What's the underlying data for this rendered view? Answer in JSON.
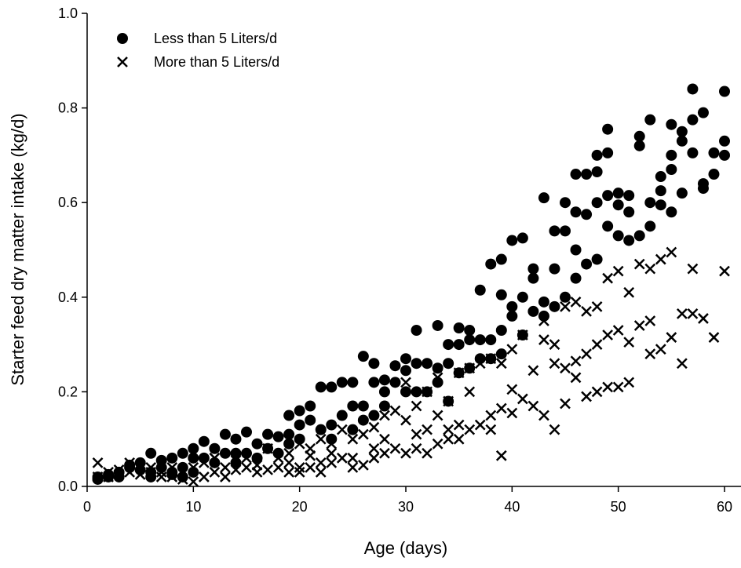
{
  "chart_data": {
    "type": "scatter",
    "x_label": "Age (days)",
    "y_label": "Starter feed dry matter intake (kg/d)",
    "xlim": [
      0,
      62
    ],
    "xticks": [
      0,
      10,
      20,
      30,
      40,
      50,
      60
    ],
    "ylim": [
      0,
      1
    ],
    "yticks": [
      {
        "value": 0,
        "label": "0.0"
      },
      0.2,
      0.4,
      0.6,
      0.8,
      {
        "value": 1,
        "label": "1.0"
      }
    ],
    "legend": "upper left",
    "series": [
      {
        "name": "Less than 5 Liters/d",
        "marker": "circle",
        "color": "#000000",
        "x": [
          1,
          1,
          2,
          2,
          3,
          3,
          4,
          4,
          5,
          5,
          6,
          6,
          6,
          7,
          7,
          8,
          8,
          8,
          9,
          9,
          9,
          10,
          10,
          10,
          11,
          11,
          12,
          12,
          13,
          13,
          14,
          14,
          14,
          15,
          15,
          16,
          16,
          17,
          17,
          18,
          18,
          19,
          19,
          19,
          20,
          20,
          20,
          21,
          21,
          22,
          22,
          23,
          23,
          23,
          24,
          24,
          25,
          25,
          25,
          26,
          26,
          26,
          27,
          27,
          27,
          28,
          28,
          28,
          29,
          29,
          30,
          30,
          30,
          31,
          31,
          31,
          32,
          32,
          33,
          33,
          33,
          34,
          34,
          34,
          35,
          35,
          35,
          36,
          36,
          36,
          37,
          37,
          37,
          38,
          38,
          38,
          39,
          39,
          39,
          39,
          40,
          40,
          40,
          41,
          41,
          41,
          42,
          42,
          42,
          43,
          43,
          43,
          44,
          44,
          44,
          45,
          45,
          45,
          46,
          46,
          46,
          46,
          47,
          47,
          47,
          48,
          48,
          48,
          48,
          49,
          49,
          49,
          49,
          50,
          50,
          50,
          51,
          51,
          51,
          52,
          52,
          52,
          53,
          53,
          53,
          54,
          54,
          54,
          55,
          55,
          55,
          55,
          56,
          56,
          56,
          57,
          57,
          57,
          58,
          58,
          58,
          59,
          59,
          60,
          60,
          60
        ],
        "values": [
          0.015,
          0.02,
          0.02,
          0.025,
          0.02,
          0.03,
          0.04,
          0.045,
          0.035,
          0.05,
          0.03,
          0.07,
          0.02,
          0.04,
          0.055,
          0.06,
          0.03,
          0.025,
          0.07,
          0.02,
          0.04,
          0.08,
          0.03,
          0.06,
          0.095,
          0.06,
          0.08,
          0.05,
          0.11,
          0.07,
          0.1,
          0.07,
          0.05,
          0.115,
          0.07,
          0.09,
          0.06,
          0.11,
          0.08,
          0.105,
          0.07,
          0.15,
          0.11,
          0.09,
          0.16,
          0.13,
          0.1,
          0.17,
          0.14,
          0.21,
          0.12,
          0.21,
          0.13,
          0.1,
          0.22,
          0.15,
          0.22,
          0.17,
          0.12,
          0.275,
          0.17,
          0.14,
          0.26,
          0.22,
          0.15,
          0.225,
          0.2,
          0.17,
          0.255,
          0.22,
          0.27,
          0.245,
          0.2,
          0.33,
          0.26,
          0.2,
          0.26,
          0.2,
          0.34,
          0.25,
          0.22,
          0.3,
          0.26,
          0.18,
          0.335,
          0.3,
          0.24,
          0.33,
          0.25,
          0.31,
          0.415,
          0.31,
          0.27,
          0.47,
          0.31,
          0.27,
          0.48,
          0.405,
          0.33,
          0.28,
          0.52,
          0.38,
          0.36,
          0.525,
          0.4,
          0.32,
          0.46,
          0.44,
          0.37,
          0.61,
          0.39,
          0.36,
          0.54,
          0.46,
          0.38,
          0.6,
          0.54,
          0.4,
          0.66,
          0.58,
          0.5,
          0.44,
          0.66,
          0.575,
          0.47,
          0.7,
          0.665,
          0.6,
          0.48,
          0.755,
          0.705,
          0.615,
          0.55,
          0.62,
          0.595,
          0.53,
          0.615,
          0.58,
          0.52,
          0.74,
          0.72,
          0.53,
          0.775,
          0.6,
          0.55,
          0.655,
          0.625,
          0.595,
          0.765,
          0.7,
          0.67,
          0.58,
          0.75,
          0.73,
          0.62,
          0.84,
          0.775,
          0.705,
          0.79,
          0.64,
          0.63,
          0.705,
          0.66,
          0.835,
          0.73,
          0.7
        ]
      },
      {
        "name": "More than 5 Liters/d",
        "marker": "cross",
        "color": "#000000",
        "x": [
          1,
          1,
          2,
          2,
          3,
          4,
          4,
          5,
          5,
          6,
          6,
          7,
          7,
          8,
          8,
          9,
          9,
          10,
          10,
          11,
          11,
          12,
          12,
          13,
          13,
          14,
          14,
          15,
          15,
          16,
          16,
          17,
          17,
          18,
          18,
          19,
          19,
          19,
          20,
          20,
          20,
          21,
          21,
          21,
          22,
          22,
          22,
          23,
          23,
          23,
          24,
          24,
          25,
          25,
          25,
          26,
          26,
          27,
          27,
          27,
          28,
          28,
          28,
          29,
          29,
          30,
          30,
          30,
          31,
          31,
          31,
          32,
          32,
          32,
          33,
          33,
          33,
          34,
          34,
          34,
          35,
          35,
          35,
          36,
          36,
          36,
          37,
          37,
          38,
          38,
          38,
          39,
          39,
          39,
          40,
          40,
          40,
          41,
          41,
          42,
          42,
          43,
          43,
          43,
          44,
          44,
          44,
          45,
          45,
          45,
          46,
          46,
          46,
          47,
          47,
          47,
          48,
          48,
          48,
          49,
          49,
          49,
          50,
          50,
          50,
          51,
          51,
          51,
          52,
          52,
          53,
          53,
          53,
          54,
          54,
          55,
          55,
          56,
          56,
          57,
          57,
          58,
          59,
          60
        ],
        "values": [
          0.05,
          0.02,
          0.02,
          0.03,
          0.035,
          0.05,
          0.03,
          0.04,
          0.025,
          0.03,
          0.04,
          0.02,
          0.03,
          0.04,
          0.02,
          0.015,
          0.03,
          0.04,
          0.01,
          0.02,
          0.05,
          0.03,
          0.06,
          0.04,
          0.02,
          0.055,
          0.035,
          0.04,
          0.06,
          0.045,
          0.03,
          0.035,
          0.08,
          0.06,
          0.04,
          0.05,
          0.07,
          0.03,
          0.09,
          0.04,
          0.03,
          0.065,
          0.04,
          0.08,
          0.1,
          0.05,
          0.03,
          0.07,
          0.09,
          0.05,
          0.12,
          0.06,
          0.1,
          0.06,
          0.04,
          0.11,
          0.045,
          0.125,
          0.08,
          0.06,
          0.15,
          0.1,
          0.07,
          0.16,
          0.08,
          0.22,
          0.14,
          0.07,
          0.17,
          0.11,
          0.08,
          0.2,
          0.12,
          0.07,
          0.23,
          0.15,
          0.09,
          0.18,
          0.12,
          0.1,
          0.24,
          0.13,
          0.1,
          0.25,
          0.2,
          0.12,
          0.26,
          0.13,
          0.27,
          0.15,
          0.12,
          0.26,
          0.165,
          0.065,
          0.29,
          0.205,
          0.155,
          0.32,
          0.185,
          0.245,
          0.17,
          0.35,
          0.31,
          0.15,
          0.26,
          0.12,
          0.3,
          0.38,
          0.25,
          0.175,
          0.39,
          0.265,
          0.23,
          0.37,
          0.28,
          0.19,
          0.38,
          0.3,
          0.2,
          0.44,
          0.32,
          0.21,
          0.455,
          0.33,
          0.21,
          0.41,
          0.305,
          0.22,
          0.47,
          0.34,
          0.46,
          0.35,
          0.28,
          0.48,
          0.29,
          0.495,
          0.315,
          0.365,
          0.26,
          0.46,
          0.365,
          0.355,
          0.315,
          0.455
        ]
      }
    ]
  }
}
